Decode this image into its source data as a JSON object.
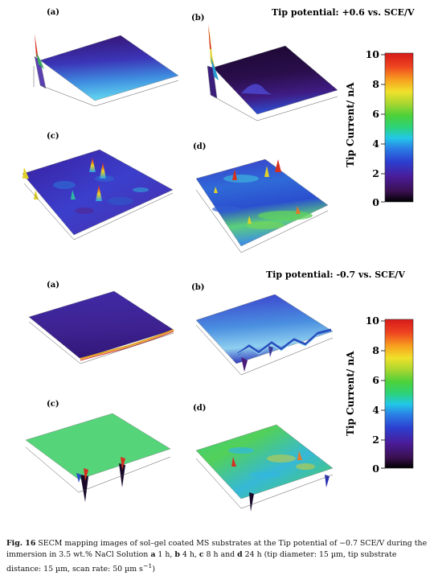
{
  "section_top": {
    "title": "Tip potential:  +0.6 vs. SCE/V",
    "panels": [
      "(a)",
      "(b)",
      "(c)",
      "(d)"
    ]
  },
  "section_bottom": {
    "title": "Tip potential: -0.7 vs. SCE/V",
    "panels": [
      "(a)",
      "(b)",
      "(c)",
      "(d)"
    ]
  },
  "colorbar": {
    "title": "Tip Current/ nA",
    "ticks": [
      "10",
      "8",
      "6",
      "4",
      "2",
      "0"
    ],
    "range": [
      0,
      10
    ],
    "colors": [
      "#000000",
      "#3a1050",
      "#4a1c9a",
      "#2c3fd0",
      "#2a7fe6",
      "#22c8e8",
      "#2cd27a",
      "#4cd13a",
      "#a8d630",
      "#f0e12a",
      "#f7a11f",
      "#ee4420",
      "#d61a1a"
    ]
  },
  "caption": {
    "figno": "Fig. 16",
    "text1": "  SECM mapping images of sol–gel coated MS substrates at the Tip potential of −0.7 SCE/V during the immersion in 3.5 wt.% NaCl Solution ",
    "a": "a",
    "t_a": " 1 h, ",
    "b": "b",
    "t_b": " 4 h, ",
    "c": "c",
    "t_c": " 8 h and ",
    "d": "d",
    "t_d": " 24 h (tip diameter: 15 µm, tip substrate distance: 15 µm, scan rate: 50 µm s",
    "sup": "−1",
    "end": ")"
  }
}
